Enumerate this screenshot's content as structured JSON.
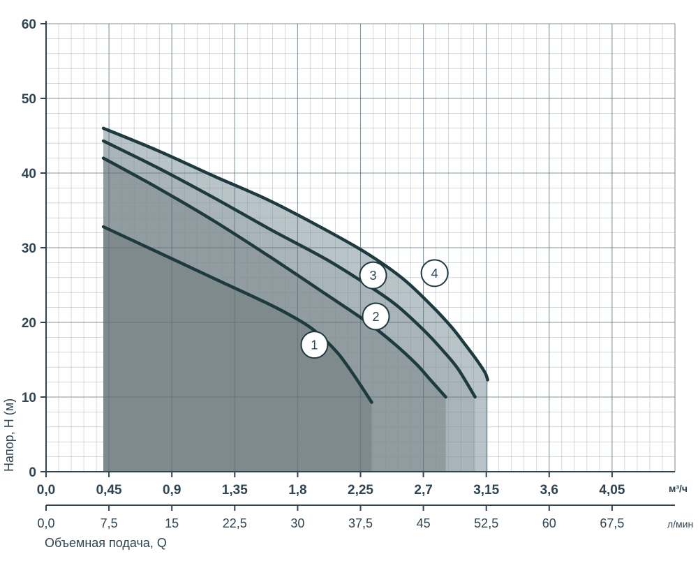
{
  "chart_data": {
    "type": "line",
    "ylabel": "Напор, H (м)",
    "xlabel": "Объемная подача, Q",
    "x_unit_primary": "м³/ч",
    "x_unit_secondary": "л/мин",
    "xlim": [
      0,
      4.5
    ],
    "ylim": [
      0,
      60
    ],
    "grid": true,
    "x_ticks": [
      "0,0",
      "0,45",
      "0,9",
      "1,35",
      "1,8",
      "2,25",
      "2,7",
      "3,15",
      "3,6",
      "4,05"
    ],
    "x_ticks_values": [
      0,
      0.45,
      0.9,
      1.35,
      1.8,
      2.25,
      2.7,
      3.15,
      3.6,
      4.05
    ],
    "x2_ticks": [
      "0,0",
      "7,5",
      "15",
      "22,5",
      "30",
      "37,5",
      "45",
      "52,5",
      "60",
      "67,5"
    ],
    "y_ticks": [
      "0",
      "10",
      "20",
      "30",
      "40",
      "50",
      "60"
    ],
    "y_ticks_values": [
      0,
      10,
      20,
      30,
      40,
      50,
      60
    ],
    "series": [
      {
        "name": "1",
        "x": [
          0.41,
          0.8,
          1.2,
          1.6,
          1.8,
          1.9,
          2.0,
          2.1,
          2.2,
          2.33
        ],
        "y": [
          32.8,
          29.4,
          25.9,
          22.4,
          20.4,
          19.2,
          17.6,
          15.6,
          13.0,
          9.3
        ]
      },
      {
        "name": "2",
        "x": [
          0.41,
          0.8,
          1.2,
          1.6,
          2.0,
          2.3,
          2.5,
          2.65,
          2.75,
          2.86
        ],
        "y": [
          42.0,
          38.0,
          33.6,
          28.8,
          23.8,
          20.0,
          17.0,
          14.4,
          12.3,
          10.0
        ]
      },
      {
        "name": "3",
        "x": [
          0.41,
          0.8,
          1.2,
          1.6,
          2.0,
          2.3,
          2.5,
          2.7,
          2.85,
          2.95,
          3.07
        ],
        "y": [
          44.3,
          40.7,
          36.7,
          32.5,
          28.5,
          25.0,
          22.4,
          19.0,
          16.0,
          13.7,
          10.0
        ]
      },
      {
        "name": "4",
        "x": [
          0.41,
          0.8,
          1.2,
          1.6,
          2.0,
          2.3,
          2.55,
          2.75,
          2.9,
          3.0,
          3.08,
          3.14,
          3.16
        ],
        "y": [
          46.0,
          43.0,
          39.6,
          36.3,
          32.4,
          29.2,
          25.9,
          22.4,
          19.4,
          17.0,
          15.0,
          13.3,
          12.3
        ]
      }
    ]
  }
}
